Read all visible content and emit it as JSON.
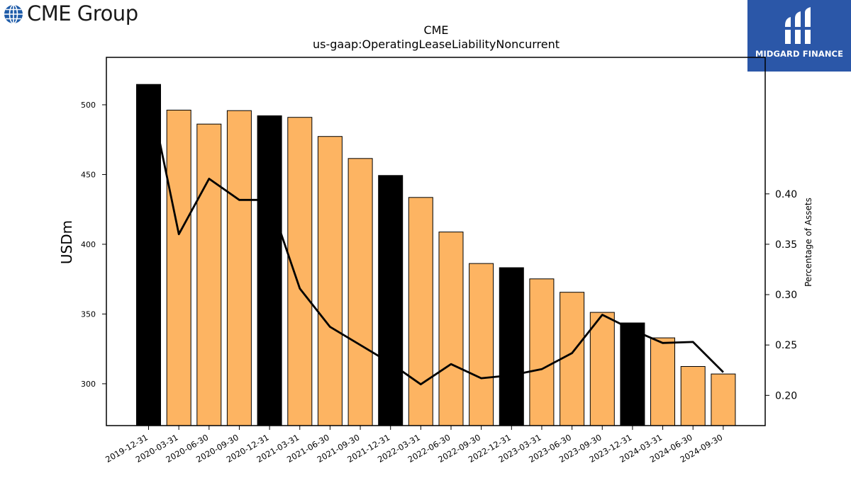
{
  "logos": {
    "left_text": "CME Group",
    "right_text": "MIDGARD FINANCE",
    "brand_blue": "#1e5ba8",
    "mf_blue": "#2b57a8"
  },
  "chart_data": {
    "type": "bar",
    "title": "CME",
    "subtitle": "us-gaap:OperatingLeaseLiabilityNoncurrent",
    "ylabel": "USDm",
    "y2label": "Percentage of Assets",
    "categories": [
      "2019-12-31",
      "2020-03-31",
      "2020-06-30",
      "2020-09-30",
      "2020-12-31",
      "2021-03-31",
      "2021-06-30",
      "2021-09-30",
      "2021-12-31",
      "2022-03-31",
      "2022-06-30",
      "2022-09-30",
      "2022-12-31",
      "2023-03-31",
      "2023-06-30",
      "2023-09-30",
      "2023-12-31",
      "2024-03-31",
      "2024-06-30",
      "2024-09-30"
    ],
    "series": [
      {
        "type": "bar",
        "values": [
          514.6,
          496.2,
          486.2,
          495.8,
          492.1,
          491.0,
          477.3,
          461.5,
          449.3,
          433.6,
          408.8,
          386.2,
          383.2,
          375.2,
          365.6,
          351.2,
          343.6,
          332.9,
          312.4,
          307.0
        ],
        "highlight": [
          true,
          false,
          false,
          false,
          true,
          false,
          false,
          false,
          true,
          false,
          false,
          false,
          true,
          false,
          false,
          false,
          true,
          false,
          false,
          false
        ],
        "color": "#fdb462",
        "highlight_color": "#000000"
      },
      {
        "type": "line",
        "axis": "right",
        "values": [
          0.505,
          0.36,
          0.415,
          0.394,
          0.394,
          0.306,
          0.268,
          0.25,
          0.232,
          0.211,
          0.231,
          0.217,
          0.22,
          0.226,
          0.242,
          0.28,
          0.265,
          0.252,
          0.253,
          0.223
        ],
        "color": "#000000"
      }
    ],
    "ylim": [
      270,
      534
    ],
    "y2lim": [
      0.17,
      0.5355
    ],
    "yticks": [
      300,
      350,
      400,
      450,
      500
    ],
    "y2ticks": [
      0.2,
      0.25,
      0.3,
      0.35,
      0.4
    ]
  }
}
